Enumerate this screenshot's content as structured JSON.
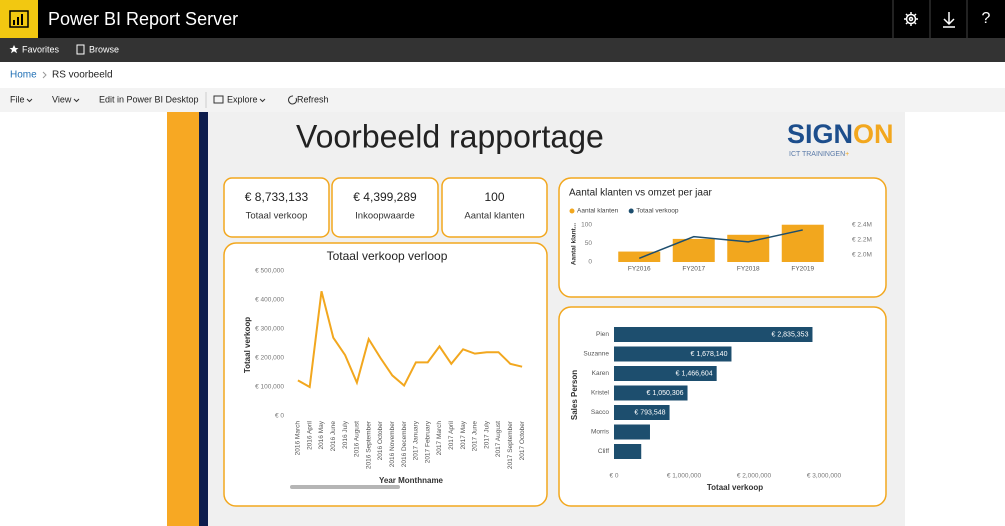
{
  "header": {
    "title": "Power BI Report Server",
    "help": "?"
  },
  "nav": {
    "items": [
      "Favorites",
      "Browse"
    ]
  },
  "breadcrumb": [
    "Home",
    "RS voorbeeld"
  ],
  "toolbar": [
    "File",
    "View",
    "Edit in Power BI Desktop",
    "Explore",
    "Refresh"
  ],
  "report": {
    "title": "Voorbeeld rapportage",
    "logo": {
      "main": "SIGN",
      "accent": "ON",
      "tagline": "ICT TRAININGEN",
      "plus": "+"
    },
    "kpis": [
      {
        "value": "€ 8,733,133",
        "label": "Totaal verkoop"
      },
      {
        "value": "€ 4,399,289",
        "label": "Inkoopwaarde"
      },
      {
        "value": "100",
        "label": "Aantal klanten"
      }
    ],
    "line_chart": {
      "type": "line",
      "title": "Totaal verkoop verloop",
      "y_label": "Totaal verkoop",
      "x_label": "Year Monthname",
      "color": "#f2a71e",
      "categories": [
        "2016 March",
        "2016 April",
        "2016 May",
        "2016 June",
        "2016 July",
        "2016 August",
        "2016 September",
        "2016 October",
        "2016 November",
        "2016 December",
        "2017 January",
        "2017 February",
        "2017 March",
        "2017 April",
        "2017 May",
        "2017 June",
        "2017 July",
        "2017 August",
        "2017 September",
        "2017 October"
      ],
      "values": [
        123000,
        100000,
        430000,
        270000,
        210000,
        115000,
        265000,
        200000,
        140000,
        105000,
        185000,
        185000,
        240000,
        180000,
        230000,
        215000,
        220000,
        220000,
        180000,
        170000
      ],
      "ylim": [
        0,
        500000
      ],
      "yticks": [
        {
          "value": 0,
          "label": "€ 0"
        },
        {
          "value": 100000,
          "label": "€ 100,000"
        },
        {
          "value": 200000,
          "label": "€ 200,000"
        },
        {
          "value": 300000,
          "label": "€ 300,000"
        },
        {
          "value": 400000,
          "label": "€ 400,000"
        },
        {
          "value": 500000,
          "label": "€ 500,000"
        }
      ]
    },
    "combo_chart": {
      "type": "bar",
      "title": "Aantal klanten vs omzet per jaar",
      "y_label": "Aantal klant...",
      "categories": [
        "FY2016",
        "FY2017",
        "FY2018",
        "FY2019"
      ],
      "series": [
        {
          "name": "Aantal klanten",
          "color": "#f2a71e",
          "type": "bar",
          "values": [
            28,
            62,
            73,
            100
          ]
        },
        {
          "name": "Totaal verkoop",
          "color": "#1d4e6e",
          "type": "line",
          "axis": "y2",
          "values": [
            1950000,
            2240000,
            2170000,
            2330000
          ]
        }
      ],
      "ylim": [
        0,
        110
      ],
      "yticks": [
        0,
        50,
        100
      ],
      "y2lim": [
        1900000,
        2450000
      ],
      "y2ticks": [
        {
          "value": 2000000,
          "label": "€ 2.0M"
        },
        {
          "value": 2200000,
          "label": "€ 2.2M"
        },
        {
          "value": 2400000,
          "label": "€ 2.4M"
        }
      ]
    },
    "bar_chart": {
      "type": "hbar",
      "y_label": "Sales Person",
      "x_label": "Totaal verkoop",
      "color": "#1d4e6e",
      "categories": [
        "Pien",
        "Suzanne",
        "Karen",
        "Kristel",
        "Sacco",
        "Morris",
        "Cliff"
      ],
      "values": [
        2835353,
        1678140,
        1466604,
        1050306,
        793548,
        514000,
        389000
      ],
      "value_labels": [
        "€ 2,835,353",
        "€ 1,678,140",
        "€ 1,466,604",
        "€ 1,050,306",
        "€ 793,548",
        null,
        null
      ],
      "xlim": [
        0,
        3000000
      ],
      "xticks": [
        {
          "value": 0,
          "label": "€ 0"
        },
        {
          "value": 1000000,
          "label": "€ 1,000,000"
        },
        {
          "value": 2000000,
          "label": "€ 2,000,000"
        },
        {
          "value": 3000000,
          "label": "€ 3,000,000"
        }
      ]
    }
  }
}
